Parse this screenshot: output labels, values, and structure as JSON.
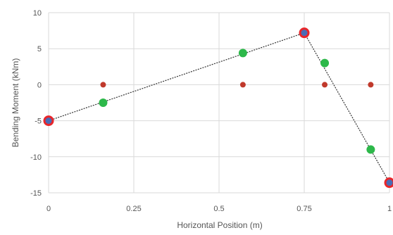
{
  "chart_data": {
    "type": "scatter",
    "xlabel": "Horizontal Position (m)",
    "ylabel": "Bending Moment (kNm)",
    "xlim": [
      0,
      1
    ],
    "ylim": [
      -15,
      10
    ],
    "x_ticks": [
      0,
      0.25,
      0.5,
      0.75,
      1
    ],
    "x_tick_labels": [
      "0",
      "0.25",
      "0.5",
      "0.75",
      "1"
    ],
    "y_ticks": [
      -15,
      -10,
      -5,
      0,
      5,
      10
    ],
    "y_tick_labels": [
      "-15",
      "-10",
      "-5",
      "0",
      "5",
      "10"
    ],
    "grid": true,
    "series": [
      {
        "style": "line",
        "color": "#333333",
        "points": [
          {
            "x": 0,
            "y": -5
          },
          {
            "x": 0.75,
            "y": 7.2
          },
          {
            "x": 1,
            "y": -13.6
          }
        ]
      },
      {
        "style": "marker",
        "marker": "ring",
        "color": "#e8262a",
        "inner_color": "#4a6bb5",
        "points": [
          {
            "x": 0,
            "y": -5
          },
          {
            "x": 0.75,
            "y": 7.2
          },
          {
            "x": 1,
            "y": -13.6
          }
        ]
      },
      {
        "style": "marker",
        "marker": "dot",
        "color": "#2db84a",
        "points": [
          {
            "x": 0.16,
            "y": -2.5
          },
          {
            "x": 0.57,
            "y": 4.4
          },
          {
            "x": 0.81,
            "y": 3.0
          },
          {
            "x": 0.945,
            "y": -9.0
          }
        ]
      },
      {
        "style": "marker",
        "marker": "small-dot",
        "color": "#c0392b",
        "points": [
          {
            "x": 0.16,
            "y": 0
          },
          {
            "x": 0.57,
            "y": 0
          },
          {
            "x": 0.81,
            "y": 0
          },
          {
            "x": 0.945,
            "y": 0
          }
        ]
      }
    ]
  }
}
